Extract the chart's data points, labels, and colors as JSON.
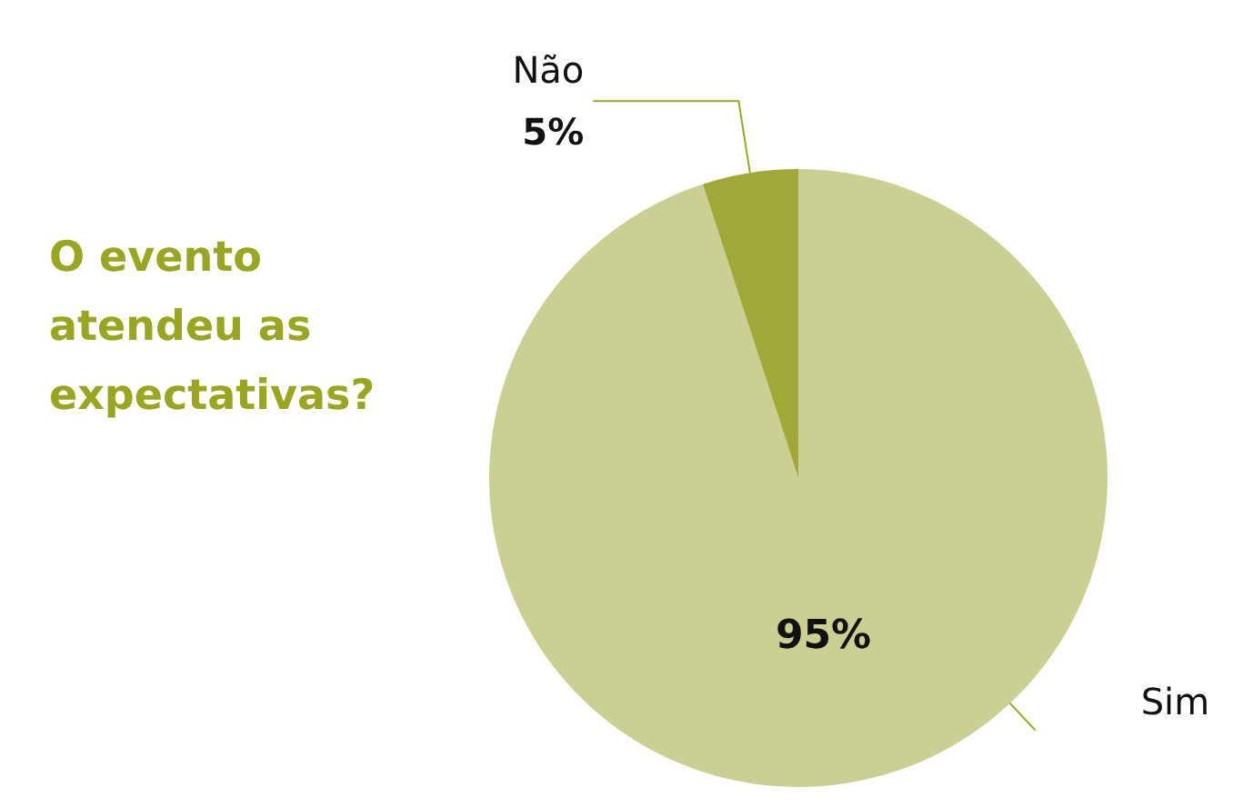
{
  "chart_data": {
    "type": "pie",
    "title": "O evento atendeu as expectativas?",
    "categories": [
      "Sim",
      "Não"
    ],
    "values": [
      95,
      5
    ],
    "colors": [
      "#cbd092",
      "#a0a937"
    ],
    "value_labels": [
      "95%",
      "5%"
    ],
    "legend": false
  }
}
